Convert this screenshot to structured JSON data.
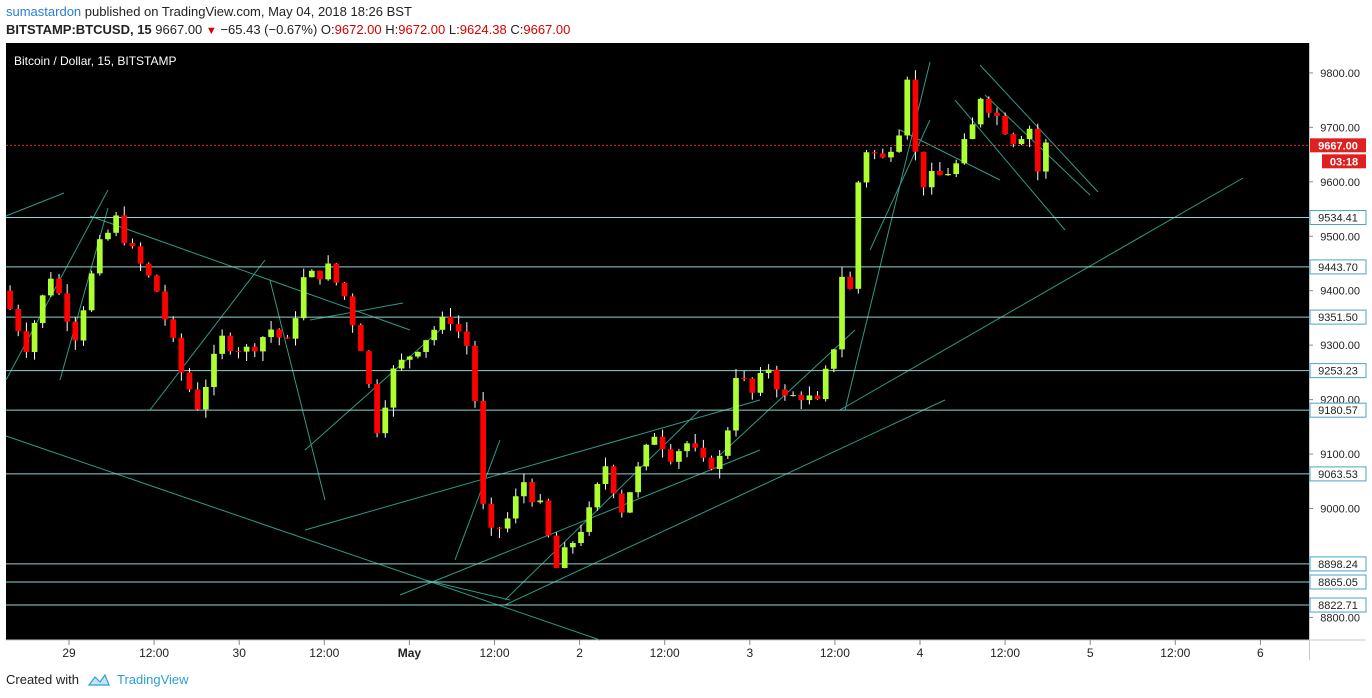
{
  "header": {
    "user": "sumastardon",
    "published_text": "published on TradingView.com, May 04, 2018 18:26 BST",
    "symbol": "BITSTAMP:BTCUSD, 15",
    "last": "9667.00",
    "change": "−65.43 (−0.67%)",
    "o_label": "O:",
    "o_value": "9672.00",
    "h_label": "H:",
    "h_value": "9672.00",
    "l_label": "L:",
    "l_value": "9624.38",
    "c_label": "C:",
    "c_value": "9667.00"
  },
  "footer": {
    "created_with": "Created with",
    "brand": "TradingView"
  },
  "colors": {
    "background": "#000000",
    "up": "#adff2f",
    "down": "#ff0000",
    "wick": "#ffffff",
    "lines": "#8fd3d3",
    "trendlines": "#2e9a86",
    "price_line": "#e03030",
    "axis_text": "#222222"
  },
  "chart_data": {
    "type": "candlestick",
    "title": "Bitcoin / Dollar, 15, BITSTAMP",
    "x_ticks": [
      "29",
      "12:00",
      "30",
      "12:00",
      "May",
      "12:00",
      "2",
      "12:00",
      "3",
      "12:00",
      "4",
      "12:00",
      "5",
      "12:00",
      "6"
    ],
    "y_ticks": [
      "9800.00",
      "9700.00",
      "9600.00",
      "9500.00",
      "9400.00",
      "9300.00",
      "9200.00",
      "9100.00",
      "9000.00",
      "8800.00"
    ],
    "ylim": [
      8780,
      9850
    ],
    "horizontal_levels": [
      9534.41,
      9443.7,
      9351.5,
      9253.23,
      9180.57,
      9063.53,
      8898.24,
      8865.05,
      8822.71
    ],
    "horizontal_level_labels": [
      "9534.41",
      "9443.70",
      "9351.50",
      "9253.23",
      "9180.57",
      "9063.53",
      "8898.24",
      "8865.05",
      "8822.71"
    ],
    "last_price": 9667.0,
    "last_price_label": "9667.00",
    "countdown": "03:18",
    "price_path": [
      [
        0,
        9400
      ],
      [
        3,
        9300
      ],
      [
        6,
        9430
      ],
      [
        9,
        9320
      ],
      [
        12,
        9480
      ],
      [
        14,
        9530
      ],
      [
        16,
        9470
      ],
      [
        19,
        9400
      ],
      [
        22,
        9250
      ],
      [
        24,
        9190
      ],
      [
        27,
        9310
      ],
      [
        30,
        9290
      ],
      [
        33,
        9330
      ],
      [
        35,
        9300
      ],
      [
        37,
        9420
      ],
      [
        40,
        9440
      ],
      [
        42,
        9390
      ],
      [
        44,
        9300
      ],
      [
        46,
        9150
      ],
      [
        48,
        9250
      ],
      [
        51,
        9300
      ],
      [
        53,
        9330
      ],
      [
        55,
        9350
      ],
      [
        57,
        9300
      ],
      [
        58,
        9200
      ],
      [
        59,
        9000
      ],
      [
        60,
        8950
      ],
      [
        62,
        8980
      ],
      [
        64,
        9050
      ],
      [
        66,
        9000
      ],
      [
        68,
        8890
      ],
      [
        70,
        8940
      ],
      [
        72,
        8990
      ],
      [
        74,
        9080
      ],
      [
        76,
        9000
      ],
      [
        78,
        9070
      ],
      [
        80,
        9140
      ],
      [
        82,
        9100
      ],
      [
        84,
        9120
      ],
      [
        86,
        9080
      ],
      [
        88,
        9090
      ],
      [
        89,
        9150
      ],
      [
        90,
        9250
      ],
      [
        92,
        9210
      ],
      [
        94,
        9260
      ],
      [
        96,
        9200
      ],
      [
        98,
        9210
      ],
      [
        100,
        9190
      ],
      [
        102,
        9300
      ],
      [
        103,
        9430
      ],
      [
        104,
        9400
      ],
      [
        105,
        9600
      ],
      [
        106,
        9660
      ],
      [
        108,
        9640
      ],
      [
        110,
        9700
      ],
      [
        111,
        9800
      ],
      [
        112,
        9650
      ],
      [
        113,
        9600
      ],
      [
        115,
        9610
      ],
      [
        117,
        9630
      ],
      [
        119,
        9700
      ],
      [
        120,
        9760
      ],
      [
        122,
        9720
      ],
      [
        124,
        9680
      ],
      [
        126,
        9700
      ],
      [
        127,
        9620
      ],
      [
        128,
        9667
      ]
    ]
  }
}
